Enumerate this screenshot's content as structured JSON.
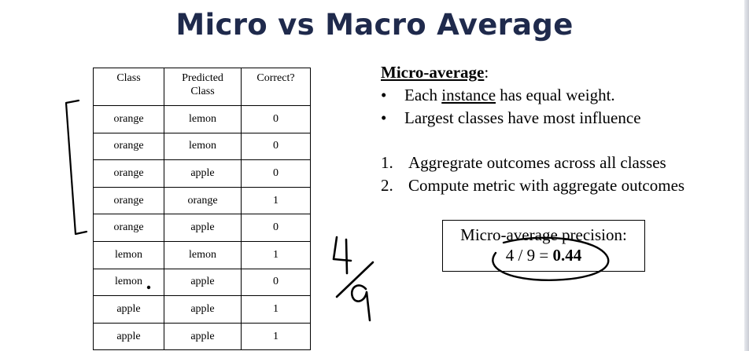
{
  "slide": {
    "title": "Micro vs Macro Average"
  },
  "table": {
    "headers": [
      "Class",
      "Predicted Class",
      "Correct?"
    ],
    "rows": [
      [
        "orange",
        "lemon",
        "0"
      ],
      [
        "orange",
        "lemon",
        "0"
      ],
      [
        "orange",
        "apple",
        "0"
      ],
      [
        "orange",
        "orange",
        "1"
      ],
      [
        "orange",
        "apple",
        "0"
      ],
      [
        "lemon",
        "lemon",
        "1"
      ],
      [
        "lemon",
        "apple",
        "0"
      ],
      [
        "apple",
        "apple",
        "1"
      ],
      [
        "apple",
        "apple",
        "1"
      ]
    ]
  },
  "micro": {
    "heading": "Micro-average",
    "heading_suffix": ":",
    "bullet_symbol": "•",
    "bullets": [
      {
        "pre": "Each ",
        "underlined": "instance",
        "post": " has equal weight."
      },
      {
        "pre": "Largest classes have most influence",
        "underlined": "",
        "post": ""
      }
    ],
    "steps": [
      {
        "num": "1.",
        "text": "Aggregrate outcomes across all classes"
      },
      {
        "num": "2.",
        "text": "Compute metric with aggregate outcomes"
      }
    ]
  },
  "result_box": {
    "label": "Micro-average precision:",
    "expression": "4 / 9 = ",
    "value": "0.44"
  },
  "annotations": {
    "handwritten_numerator": "4",
    "handwritten_denominator": "9"
  }
}
